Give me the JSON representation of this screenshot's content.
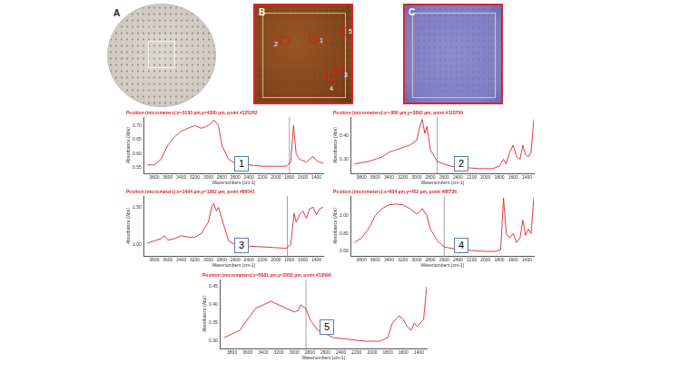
{
  "figure": {
    "panels": [
      {
        "label": "A"
      },
      {
        "label": "B",
        "points": [
          "2",
          "1",
          "5",
          "3",
          "4"
        ]
      },
      {
        "label": "C"
      }
    ]
  },
  "chart_data": [
    {
      "type": "line",
      "label": "1",
      "title": "Position (micrometers):x=3100 µm,y=4300 µm, point #125282",
      "x_label": "Wavenumbers (cm-1)",
      "y_label": "Absorbance (Abs)",
      "color": "#e0242a",
      "grid": false,
      "vertical_line": 1800,
      "x": [
        3900,
        3800,
        3700,
        3600,
        3500,
        3400,
        3300,
        3200,
        3100,
        3000,
        2950,
        2920,
        2850,
        2800,
        2700,
        2600,
        2400,
        2200,
        2000,
        1850,
        1780,
        1740,
        1700,
        1650,
        1600,
        1550,
        1500,
        1450,
        1400,
        1350,
        1300
      ],
      "values": [
        0.56,
        0.56,
        0.58,
        0.63,
        0.66,
        0.68,
        0.69,
        0.7,
        0.69,
        0.7,
        0.71,
        0.72,
        0.7,
        0.63,
        0.58,
        0.565,
        0.56,
        0.555,
        0.555,
        0.555,
        0.57,
        0.7,
        0.6,
        0.58,
        0.575,
        0.57,
        0.58,
        0.59,
        0.575,
        0.57,
        0.565
      ],
      "xlim": [
        3950,
        1300
      ],
      "xticks": [
        3800,
        3600,
        3400,
        3200,
        3000,
        2800,
        2600,
        2400,
        2200,
        2000,
        1800,
        1600,
        1400
      ],
      "ylim": [
        0.53,
        0.73
      ],
      "yticks": [
        0.55,
        {
          "value": 0.6,
          "label": "0.60"
        },
        0.65,
        {
          "value": 0.7,
          "label": "0.70"
        }
      ]
    },
    {
      "type": "line",
      "label": "2",
      "title": "Position (micrometers):x=-880 µm,y=3892 µm, point #118709",
      "x_label": "Wavenumbers (cm-1)",
      "y_label": "Absorbance (Abs)",
      "color": "#e0242a",
      "grid": false,
      "vertical_line": 2700,
      "x": [
        3900,
        3700,
        3500,
        3400,
        3300,
        3200,
        3100,
        3000,
        2960,
        2920,
        2880,
        2850,
        2800,
        2700,
        2500,
        2300,
        2100,
        1900,
        1800,
        1740,
        1700,
        1650,
        1600,
        1550,
        1500,
        1460,
        1420,
        1380,
        1340,
        1300
      ],
      "values": [
        0.28,
        0.29,
        0.31,
        0.33,
        0.34,
        0.35,
        0.36,
        0.38,
        0.43,
        0.47,
        0.41,
        0.44,
        0.34,
        0.29,
        0.27,
        0.265,
        0.26,
        0.26,
        0.27,
        0.3,
        0.28,
        0.33,
        0.36,
        0.31,
        0.3,
        0.36,
        0.32,
        0.31,
        0.33,
        0.47
      ],
      "xlim": [
        3950,
        1300
      ],
      "xticks": [
        3800,
        3600,
        3400,
        3200,
        3000,
        2800,
        2600,
        2400,
        2200,
        2000,
        1800,
        1600,
        1400
      ],
      "ylim": [
        0.24,
        0.48
      ],
      "yticks": [
        {
          "value": 0.3,
          "label": "0.30"
        },
        {
          "value": 0.4,
          "label": "0.40"
        }
      ]
    },
    {
      "type": "line",
      "label": "3",
      "title": "Position (micrometers):x=1494 µm,y=1362 µm, point #86041",
      "x_label": "Wavenumbers (cm-1)",
      "y_label": "Absorbance (Abs)",
      "color": "#e0242a",
      "grid": false,
      "vertical_line": 1830,
      "x": [
        3900,
        3800,
        3700,
        3650,
        3600,
        3500,
        3400,
        3300,
        3200,
        3100,
        3000,
        2950,
        2920,
        2880,
        2850,
        2800,
        2700,
        2600,
        2400,
        2200,
        2000,
        1850,
        1780,
        1730,
        1700,
        1650,
        1600,
        1550,
        1500,
        1450,
        1400,
        1350,
        1300
      ],
      "values": [
        1.02,
        1.05,
        1.08,
        1.12,
        1.06,
        1.08,
        1.12,
        1.1,
        1.1,
        1.15,
        1.3,
        1.5,
        1.55,
        1.45,
        1.5,
        1.35,
        1.05,
        1.0,
        0.98,
        0.97,
        0.96,
        0.95,
        1.0,
        1.42,
        1.3,
        1.4,
        1.45,
        1.35,
        1.48,
        1.5,
        1.4,
        1.48,
        1.5
      ],
      "xlim": [
        3950,
        1300
      ],
      "xticks": [
        3800,
        3600,
        3400,
        3200,
        3000,
        2800,
        2600,
        2400,
        2200,
        2000,
        1800,
        1600,
        1400
      ],
      "ylim": [
        0.85,
        1.65
      ],
      "yticks": [
        {
          "value": 1,
          "label": "1.00"
        },
        {
          "value": 1.5,
          "label": "1.50"
        }
      ]
    },
    {
      "type": "line",
      "label": "4",
      "title": "Position (micrometers):x=604 µm,y=452 µm, point #86736",
      "x_label": "Wavenumbers (cm-1)",
      "y_label": "Absorbance (Abs)",
      "color": "#e0242a",
      "grid": false,
      "vertical_line": 2600,
      "x": [
        3900,
        3800,
        3700,
        3600,
        3500,
        3400,
        3300,
        3200,
        3100,
        3000,
        2950,
        2920,
        2850,
        2800,
        2700,
        2600,
        2400,
        2200,
        2000,
        1850,
        1780,
        1740,
        1700,
        1650,
        1600,
        1550,
        1500,
        1460,
        1420,
        1380,
        1340,
        1300
      ],
      "values": [
        0.7,
        0.75,
        0.85,
        1.0,
        1.08,
        1.12,
        1.13,
        1.12,
        1.08,
        1.02,
        1.05,
        1.08,
        1.0,
        0.85,
        0.72,
        0.65,
        0.62,
        0.61,
        0.6,
        0.6,
        0.62,
        1.2,
        0.8,
        0.75,
        0.8,
        0.7,
        0.75,
        0.95,
        0.78,
        0.85,
        0.8,
        1.2
      ],
      "xlim": [
        3950,
        1300
      ],
      "xticks": [
        3800,
        3600,
        3400,
        3200,
        3000,
        2800,
        2600,
        2400,
        2200,
        2000,
        1800,
        1600,
        1400
      ],
      "ylim": [
        0.55,
        1.22
      ],
      "yticks": [
        {
          "value": 0.6,
          "label": "0.60"
        },
        {
          "value": 0.8,
          "label": "0.80"
        },
        {
          "value": 1,
          "label": "1.00"
        }
      ]
    },
    {
      "type": "line",
      "label": "5",
      "title": "Position (micrometers):x=5881 µm,y=2052 µm, point #13096",
      "x_label": "Wavenumbers (cm-1)",
      "y_label": "Absorbance (Abs)",
      "color": "#e0242a",
      "grid": false,
      "vertical_line": 2850,
      "x": [
        3900,
        3700,
        3600,
        3500,
        3400,
        3300,
        3200,
        3100,
        3000,
        2950,
        2920,
        2850,
        2800,
        2700,
        2500,
        2300,
        2100,
        1900,
        1800,
        1740,
        1700,
        1650,
        1600,
        1550,
        1500,
        1460,
        1420,
        1380,
        1340,
        1300
      ],
      "values": [
        0.31,
        0.33,
        0.36,
        0.39,
        0.4,
        0.41,
        0.4,
        0.39,
        0.38,
        0.385,
        0.4,
        0.39,
        0.36,
        0.33,
        0.31,
        0.305,
        0.3,
        0.3,
        0.31,
        0.35,
        0.36,
        0.37,
        0.36,
        0.34,
        0.33,
        0.35,
        0.34,
        0.35,
        0.36,
        0.45
      ],
      "xlim": [
        3950,
        1300
      ],
      "xticks": [
        3800,
        3600,
        3400,
        3200,
        3000,
        2800,
        2600,
        2400,
        2200,
        2000,
        1800,
        1600,
        1400
      ],
      "ylim": [
        0.28,
        0.47
      ],
      "yticks": [
        {
          "value": 0.3,
          "label": "0.30"
        },
        0.35,
        {
          "value": 0.4,
          "label": "0.40"
        },
        0.45
      ]
    }
  ]
}
